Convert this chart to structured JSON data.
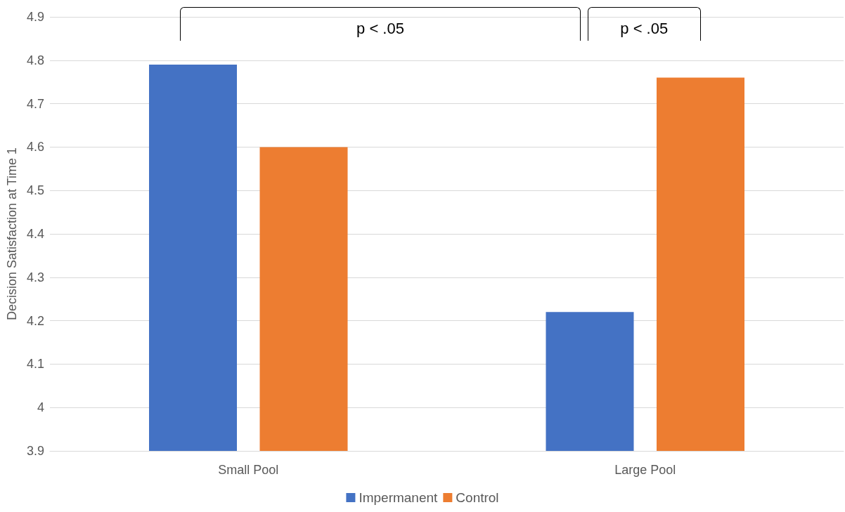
{
  "chart_data": {
    "type": "bar",
    "ylabel": "Decision Satisfaction at Time 1",
    "categories": [
      "Small Pool",
      "Large Pool"
    ],
    "series": [
      {
        "name": "Impermanent",
        "color": "#4472c4",
        "values": [
          4.79,
          4.22
        ]
      },
      {
        "name": "Control",
        "color": "#ed7d31",
        "values": [
          4.6,
          4.76
        ]
      }
    ],
    "ylim": [
      3.9,
      4.9
    ],
    "yticks": [
      3.9,
      4,
      4.1,
      4.2,
      4.3,
      4.4,
      4.5,
      4.6,
      4.7,
      4.8,
      4.9
    ],
    "grid": "y",
    "legend": "bottom",
    "annotations": [
      "p < .05",
      "p < .05"
    ]
  }
}
